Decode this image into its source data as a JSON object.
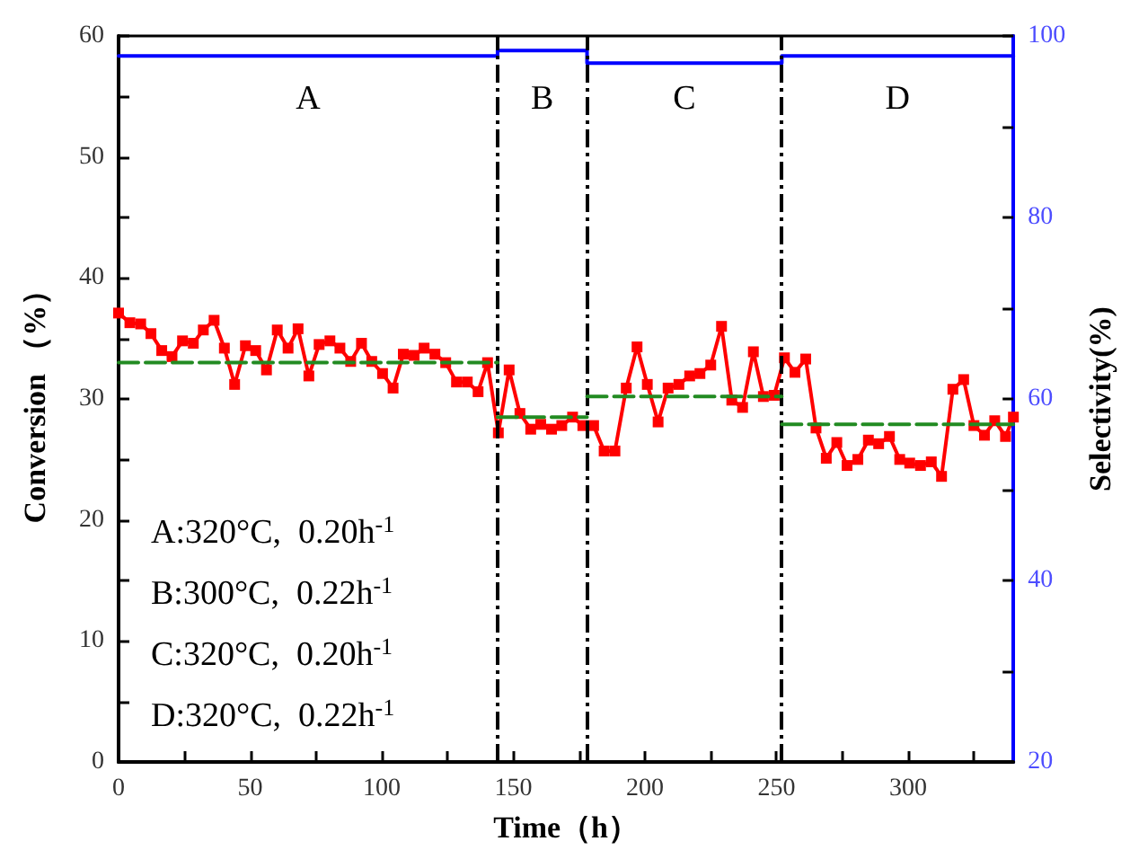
{
  "chart_data": {
    "type": "line",
    "xlabel": "Time（h）",
    "ylabel": "Conversion （%）",
    "y2label": "Selectivity(%)",
    "xlim": [
      0,
      340
    ],
    "xticks": [
      0,
      {
        "value": 25,
        "label": null
      },
      50,
      {
        "value": 75,
        "label": null
      },
      100,
      {
        "value": 125,
        "label": null
      },
      150,
      {
        "value": 175,
        "label": null
      },
      200,
      {
        "value": 225,
        "label": null
      },
      250,
      {
        "value": 275,
        "label": null
      },
      300,
      {
        "value": 325,
        "label": null
      }
    ],
    "ylim": [
      0,
      60
    ],
    "yticks": [
      0,
      {
        "value": 5,
        "label": null
      },
      10,
      {
        "value": 15,
        "label": null
      },
      20,
      {
        "value": 25,
        "label": null
      },
      30,
      {
        "value": 35,
        "label": null
      },
      40,
      {
        "value": 45,
        "label": null
      },
      50,
      {
        "value": 55,
        "label": null
      },
      60
    ],
    "y2lim": [
      20,
      100
    ],
    "y2ticks": [
      20,
      {
        "value": 30,
        "label": null
      },
      40,
      {
        "value": 50,
        "label": null
      },
      60,
      {
        "value": 70,
        "label": null
      },
      80,
      {
        "value": 90,
        "label": null
      },
      100
    ],
    "grid": false,
    "series": [
      {
        "color": "#ff0000",
        "marker": "square",
        "line_style": "solid",
        "x": [
          0,
          4.3,
          8.4,
          12.3,
          16.4,
          20.3,
          24.3,
          28.4,
          32.2,
          36.3,
          40.2,
          44.1,
          48.2,
          52.1,
          56.2,
          60.3,
          64.4,
          68.2,
          72.3,
          76.2,
          80.3,
          84.1,
          88.2,
          92.3,
          96.2,
          100.3,
          104.3,
          108.2,
          112.3,
          116.1,
          120.2,
          124.3,
          128.4,
          132.5,
          136.6,
          140.2,
          144.3,
          148.4,
          152.5,
          156.6,
          160.4,
          164.5,
          168.4,
          172.5,
          176.4,
          180.5,
          184.5,
          188.6,
          192.9,
          197,
          200.9,
          205,
          208.8,
          212.9,
          217,
          220.9,
          225,
          229.1,
          233,
          237.1,
          241.2,
          245,
          249.1,
          253,
          257,
          261.1,
          265,
          268.9,
          272.9,
          276.8,
          280.9,
          284.9,
          288.8,
          292.9,
          296.8,
          300.6,
          304.7,
          308.8,
          312.7,
          317,
          321.1,
          325,
          329,
          332.9,
          337,
          340
        ],
        "values": [
          37.1,
          36.3,
          36.2,
          35.4,
          34.0,
          33.5,
          34.8,
          34.6,
          35.7,
          36.5,
          34.2,
          31.2,
          34.4,
          34.0,
          32.4,
          35.7,
          34.2,
          35.8,
          31.9,
          34.5,
          34.8,
          34.2,
          33.1,
          34.6,
          33.1,
          32.1,
          30.9,
          33.7,
          33.6,
          34.2,
          33.7,
          33.0,
          31.4,
          31.4,
          30.6,
          33.0,
          27.2,
          32.4,
          28.8,
          27.5,
          27.9,
          27.5,
          27.8,
          28.5,
          27.8,
          27.8,
          25.7,
          25.7,
          30.9,
          34.3,
          31.2,
          28.1,
          30.9,
          31.2,
          31.9,
          32.1,
          32.8,
          36.0,
          29.9,
          29.3,
          33.9,
          30.2,
          30.3,
          33.4,
          32.2,
          33.3,
          27.6,
          25.1,
          26.4,
          24.5,
          25.0,
          26.6,
          26.3,
          26.9,
          25.0,
          24.7,
          24.5,
          24.8,
          23.6,
          30.8,
          31.6,
          27.8,
          27.0,
          28.2,
          26.9,
          28.5
        ]
      },
      {
        "color": "#228b22",
        "marker": "none",
        "line_style": "dashed",
        "x": [
          0,
          144
        ],
        "values": [
          33.0,
          33.0
        ]
      },
      {
        "color": "#228b22",
        "marker": "none",
        "line_style": "dashed",
        "x": [
          144,
          178
        ],
        "values": [
          28.5,
          28.5
        ]
      },
      {
        "color": "#228b22",
        "marker": "none",
        "line_style": "dashed",
        "x": [
          178,
          252
        ],
        "values": [
          30.2,
          30.2
        ]
      },
      {
        "color": "#228b22",
        "marker": "none",
        "line_style": "dashed",
        "x": [
          252,
          340
        ],
        "values": [
          27.9,
          27.9
        ]
      },
      {
        "color": "#0000ff",
        "marker": "none",
        "line_style": "solid",
        "axis": "y2",
        "x": [
          0,
          144,
          144,
          178,
          178,
          252,
          252,
          340
        ],
        "values": [
          97.8,
          97.8,
          98.4,
          98.4,
          97.0,
          97.0,
          97.8,
          97.8
        ]
      }
    ],
    "ref_lines": [
      {
        "axis": "x",
        "value": 144,
        "color": "#000000",
        "line_style": "dashed"
      },
      {
        "axis": "x",
        "value": 178,
        "color": "#000000",
        "line_style": "dashed"
      },
      {
        "axis": "x",
        "value": 252,
        "color": "#000000",
        "line_style": "dashed"
      }
    ],
    "annotations": [
      "A",
      "B",
      "C",
      "D",
      "A:320°C,  0.20h$^{-1}$",
      "B:300°C,  0.22h$^{-1}$",
      "C:320°C,  0.20h$^{-1}$",
      "D:320°C,  0.22h$^{-1}$"
    ]
  }
}
